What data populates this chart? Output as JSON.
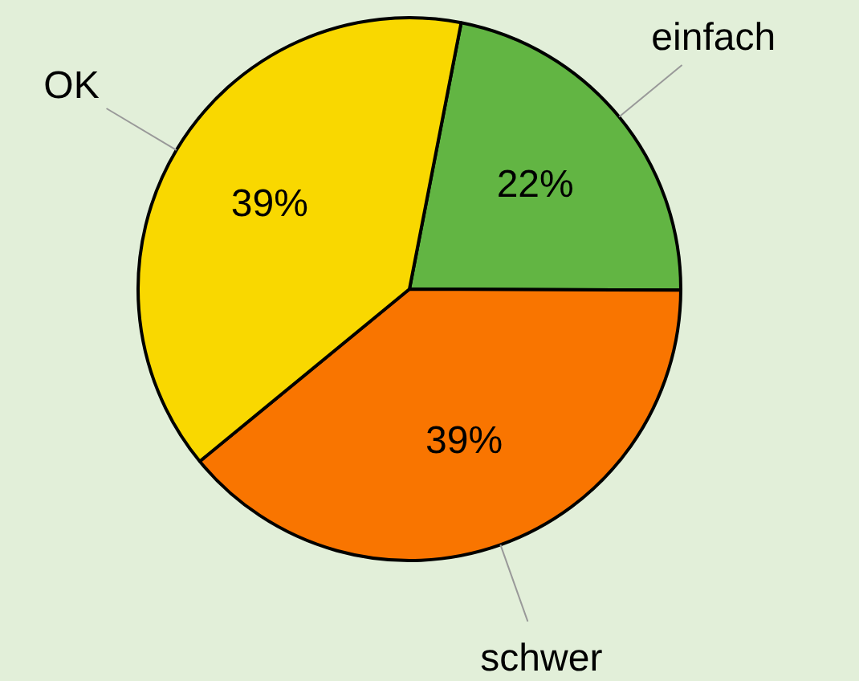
{
  "chart_data": {
    "type": "pie",
    "categories": [
      "einfach",
      "schwer",
      "OK"
    ],
    "values": [
      22,
      39,
      39
    ],
    "colors": [
      "#62b543",
      "#f97500",
      "#f9d800"
    ],
    "value_labels": [
      "22%",
      "39%",
      "39%"
    ],
    "legend": false
  }
}
